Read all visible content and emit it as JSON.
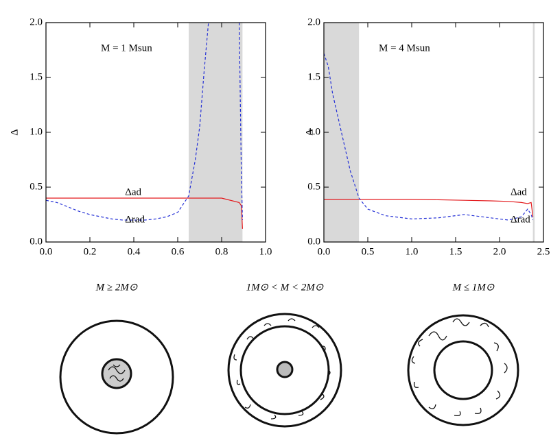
{
  "chart_data": [
    {
      "type": "line",
      "annotation": "M = 1 Msun",
      "ylabel": "Δ",
      "xlim": [
        0,
        1
      ],
      "ylim": [
        0,
        2
      ],
      "xticks": [
        {
          "value": 0,
          "label": "0.0"
        },
        0.2,
        0.4,
        0.6,
        0.8,
        {
          "value": 1,
          "label": "1.0"
        }
      ],
      "yticks": [
        {
          "value": 0,
          "label": "0.0"
        },
        0.5,
        {
          "value": 1,
          "label": "1.0"
        },
        1.5,
        {
          "value": 2,
          "label": "2.0"
        }
      ],
      "shaded": [
        [
          0.65,
          0.895
        ]
      ],
      "x": [
        0,
        0.05,
        0.1,
        0.15,
        0.2,
        0.25,
        0.3,
        0.35,
        0.4,
        0.45,
        0.5,
        0.55,
        0.6,
        0.65,
        0.68,
        0.7,
        0.72,
        0.74,
        0.8,
        0.88,
        0.89,
        0.895
      ],
      "series": [
        {
          "name": "Δad",
          "color": "#e3191c",
          "dashed": false,
          "values": [
            0.4,
            0.4,
            0.4,
            0.4,
            0.4,
            0.4,
            0.4,
            0.4,
            0.4,
            0.4,
            0.4,
            0.4,
            0.4,
            0.4,
            0.4,
            0.4,
            0.4,
            0.4,
            0.4,
            0.36,
            0.33,
            0.12
          ]
        },
        {
          "name": "Δrad",
          "color": "#2430d6",
          "dashed": true,
          "values": [
            0.38,
            0.36,
            0.32,
            0.28,
            0.25,
            0.23,
            0.21,
            0.2,
            0.2,
            0.2,
            0.21,
            0.23,
            0.27,
            0.42,
            0.75,
            1.05,
            1.55,
            2.0,
            null,
            2.0,
            0.6,
            0.2
          ]
        }
      ]
    },
    {
      "type": "line",
      "annotation": "M = 4 Msun",
      "ylabel": "Δ",
      "xlim": [
        0,
        2.5
      ],
      "ylim": [
        0,
        2
      ],
      "xticks": [
        {
          "value": 0,
          "label": "0.0"
        },
        0.5,
        {
          "value": 1,
          "label": "1.0"
        },
        1.5,
        {
          "value": 2,
          "label": "2.0"
        },
        2.5
      ],
      "yticks": [
        {
          "value": 0,
          "label": "0.0"
        },
        0.5,
        {
          "value": 1,
          "label": "1.0"
        },
        1.5,
        {
          "value": 2,
          "label": "2.0"
        }
      ],
      "shaded": [
        [
          0,
          0.4
        ],
        [
          2.38,
          2.4
        ]
      ],
      "x": [
        0,
        0.05,
        0.1,
        0.2,
        0.3,
        0.4,
        0.5,
        0.7,
        1.0,
        1.3,
        1.6,
        1.9,
        2.1,
        2.25,
        2.32,
        2.36,
        2.38
      ],
      "series": [
        {
          "name": "Δad",
          "color": "#e3191c",
          "dashed": false,
          "values": [
            0.39,
            0.39,
            0.39,
            0.39,
            0.39,
            0.39,
            0.39,
            0.39,
            0.39,
            0.385,
            0.38,
            0.375,
            0.37,
            0.36,
            0.35,
            0.36,
            0.23
          ]
        },
        {
          "name": "Δrad",
          "color": "#2430d6",
          "dashed": true,
          "values": [
            1.72,
            1.6,
            1.35,
            1.0,
            0.65,
            0.4,
            0.3,
            0.24,
            0.21,
            0.22,
            0.25,
            0.22,
            0.2,
            0.23,
            0.3,
            0.25,
            0.2
          ]
        }
      ]
    }
  ],
  "panels": [
    {
      "label": "M ≥ 2M⊙"
    },
    {
      "label": "1M⊙ < M < 2M⊙"
    },
    {
      "label": "M ≤ 1M⊙"
    }
  ]
}
